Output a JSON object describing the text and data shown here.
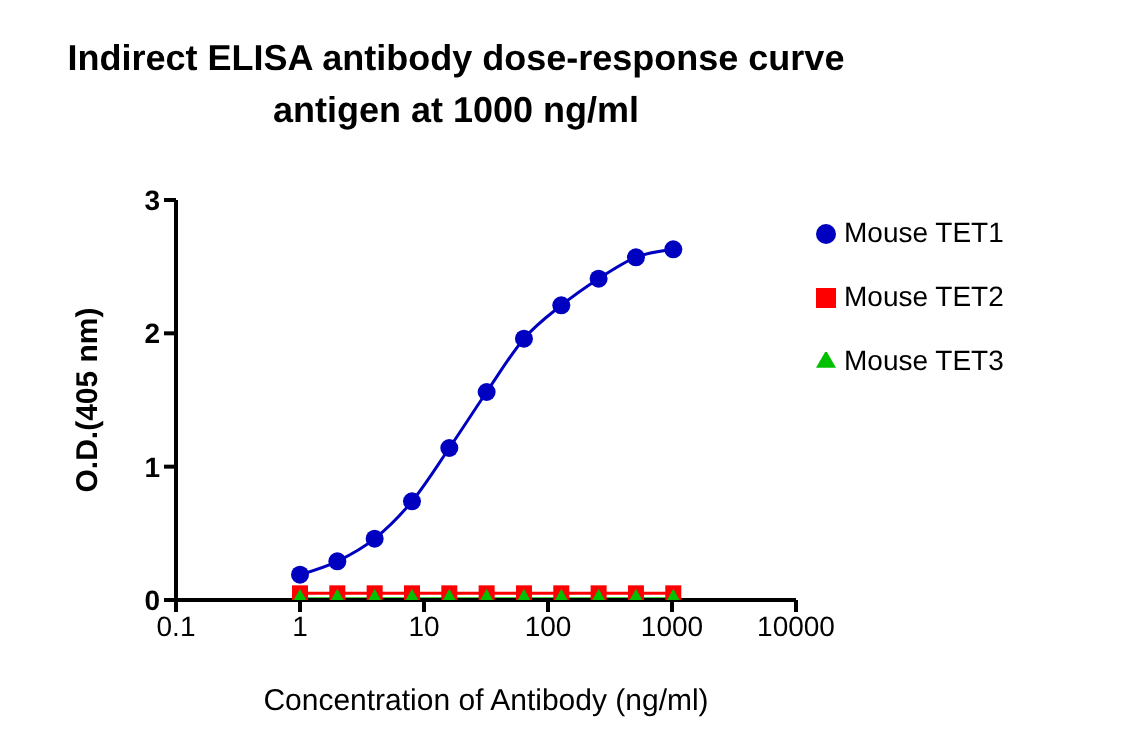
{
  "chart_data": {
    "type": "line",
    "title": "Indirect ELISA antibody dose-response curve\nantigen at 1000 ng/ml",
    "xlabel": "Concentration of Antibody (ng/ml)",
    "ylabel": "O.D.(405 nm)",
    "x": [
      1,
      2,
      4,
      8,
      16,
      32,
      64,
      128,
      256,
      512,
      1024
    ],
    "series": [
      {
        "name": "Mouse TET1",
        "color": "#0000c0",
        "marker": "circle",
        "values": [
          0.19,
          0.29,
          0.46,
          0.74,
          1.14,
          1.56,
          1.96,
          2.21,
          2.41,
          2.57,
          2.63
        ]
      },
      {
        "name": "Mouse TET2",
        "color": "#ff0000",
        "marker": "square",
        "values": [
          0.05,
          0.05,
          0.05,
          0.05,
          0.05,
          0.05,
          0.05,
          0.05,
          0.05,
          0.05,
          0.05
        ]
      },
      {
        "name": "Mouse TET3",
        "color": "#00c000",
        "marker": "triangle",
        "values": [
          0.01,
          0.01,
          0.01,
          0.01,
          0.01,
          0.01,
          0.01,
          0.01,
          0.01,
          0.01,
          0.01
        ]
      }
    ],
    "log": "x",
    "xlim": [
      0.1,
      10000
    ],
    "xticks": [
      0.1,
      1,
      10,
      100,
      1000,
      10000
    ],
    "ylim": [
      0,
      3
    ],
    "yticks": [
      0,
      1,
      2,
      3
    ],
    "grid": false,
    "legend": "right"
  }
}
